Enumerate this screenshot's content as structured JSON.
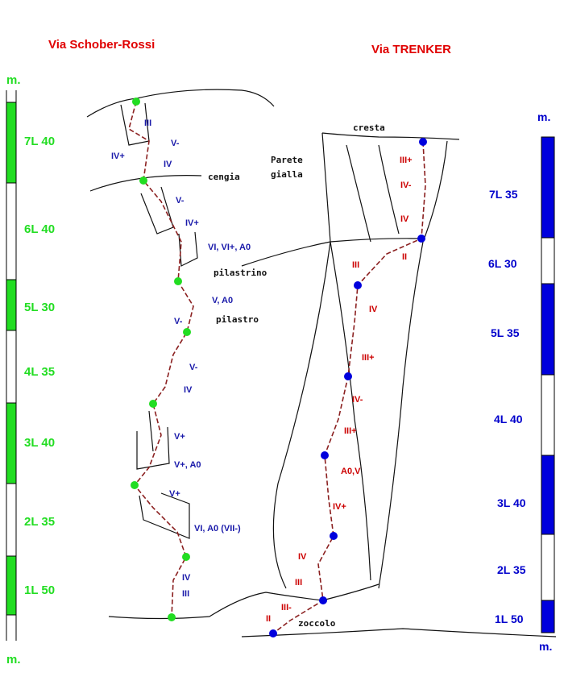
{
  "left_route": {
    "title": "Via Schober-Rossi",
    "unit_top": "m.",
    "unit_bottom": "m.",
    "pitches": [
      "7L 40",
      "6L 40",
      "5L 30",
      "4L 35",
      "3L 40",
      "2L 35",
      "1L 50"
    ],
    "grades": [
      "III",
      "V-",
      "IV+",
      "IV",
      "V-",
      "IV+",
      "VI, VI+, A0",
      "V, A0",
      "V-",
      "V-",
      "IV",
      "V+",
      "V+, A0",
      "V+",
      "VI, A0 (VII-)",
      "IV",
      "III"
    ]
  },
  "right_route": {
    "title": "Via TRENKER",
    "unit_top": "m.",
    "unit_bottom": "m.",
    "pitches": [
      "7L 35",
      "6L 30",
      "5L 35",
      "4L 40",
      "3L 40",
      "2L 35",
      "1L 50"
    ],
    "grades": [
      "III+",
      "IV-",
      "IV",
      "II",
      "III",
      "IV",
      "III+",
      "IV-",
      "III+",
      "A0,V",
      "IV+",
      "IV",
      "III",
      "III-",
      "II"
    ]
  },
  "features": [
    "cengia",
    "Parete",
    "gialla",
    "cresta",
    "pilastrino",
    "pilastro",
    "zoccolo"
  ]
}
